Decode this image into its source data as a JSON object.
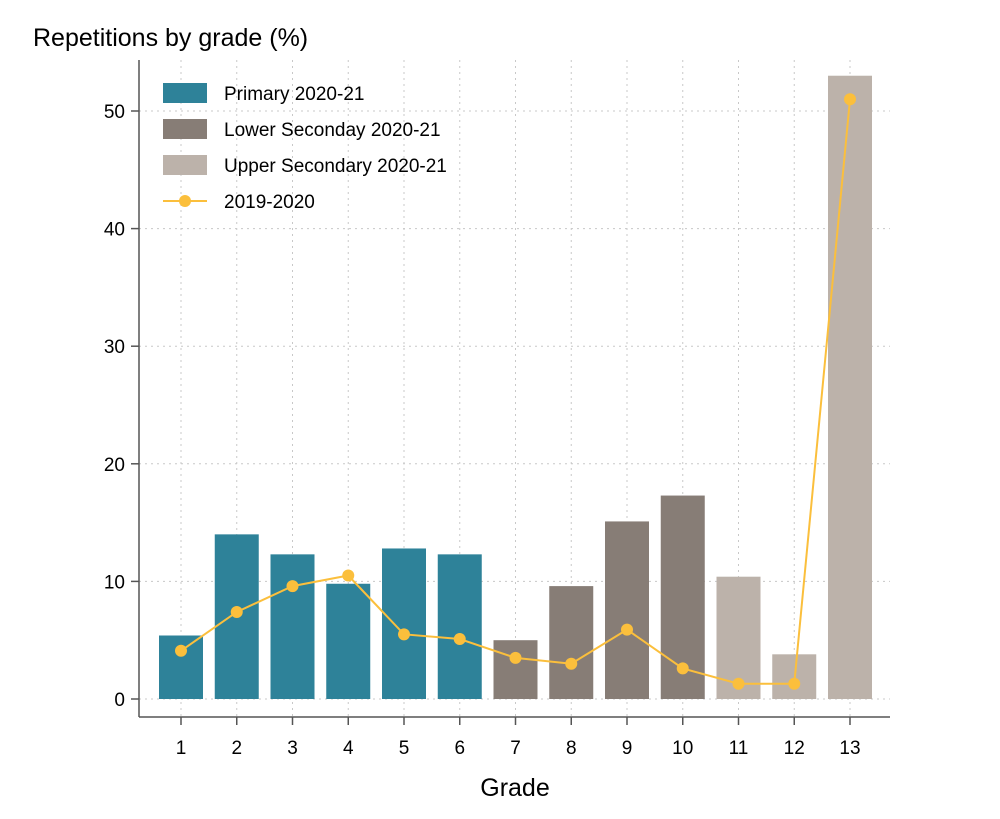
{
  "chart_data": {
    "type": "bar",
    "title": "Repetitions by grade (%)",
    "xlabel": "Grade",
    "ylabel": "",
    "categories": [
      "1",
      "2",
      "3",
      "4",
      "5",
      "6",
      "7",
      "8",
      "9",
      "10",
      "11",
      "12",
      "13"
    ],
    "ylim": [
      0,
      55
    ],
    "yticks": [
      0,
      10,
      20,
      30,
      40,
      50
    ],
    "grid": true,
    "legend_position": "top-left",
    "bar_series": [
      {
        "name": "Primary 2020-21",
        "color": "#2e8299",
        "values": [
          5.4,
          14.0,
          12.3,
          9.8,
          12.8,
          12.3,
          null,
          null,
          null,
          null,
          null,
          null,
          null
        ]
      },
      {
        "name": "Lower Seconday 2020-21",
        "color": "#877d76",
        "values": [
          null,
          null,
          null,
          null,
          null,
          null,
          5.0,
          9.6,
          15.1,
          17.3,
          null,
          null,
          null
        ]
      },
      {
        "name": "Upper Secondary 2020-21",
        "color": "#bcb2aa",
        "values": [
          null,
          null,
          null,
          null,
          null,
          null,
          null,
          null,
          null,
          null,
          10.4,
          3.8,
          53.0
        ]
      }
    ],
    "line_series": [
      {
        "name": "2019-2020",
        "color": "#fbbf3c",
        "values": [
          4.1,
          7.4,
          9.6,
          10.5,
          5.5,
          5.1,
          3.5,
          3.0,
          5.9,
          2.6,
          1.3,
          1.3,
          51.0
        ]
      }
    ]
  }
}
